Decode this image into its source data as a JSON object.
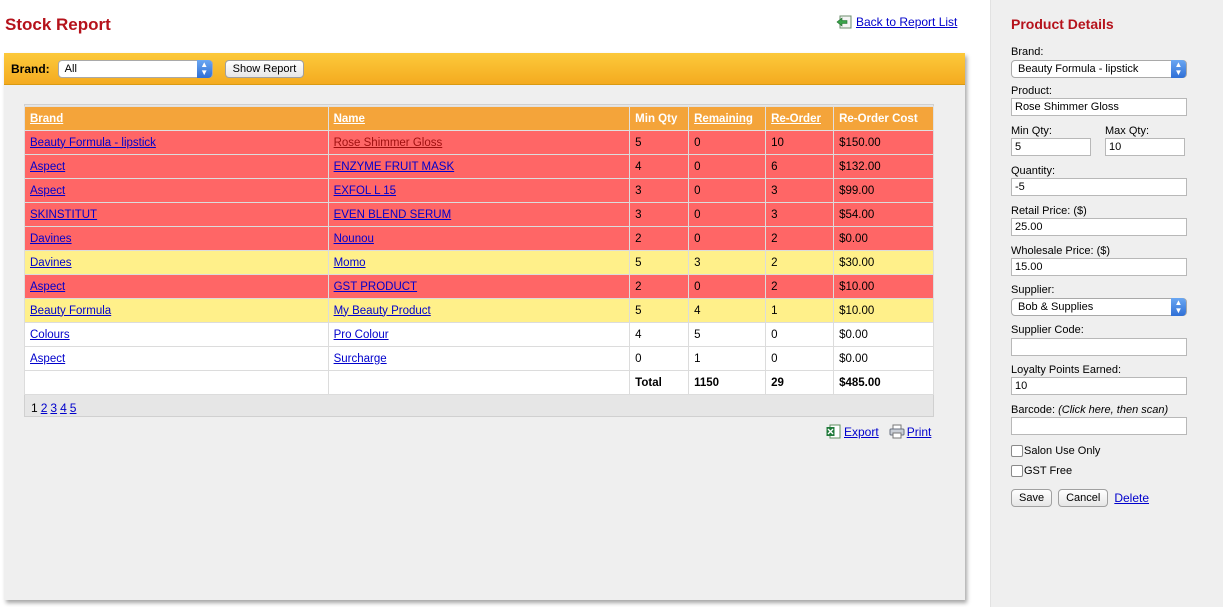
{
  "page": {
    "title": "Stock Report",
    "back_link": "Back to Report List"
  },
  "toolbar": {
    "brand_label": "Brand:",
    "brand_selected": "All",
    "show_report": "Show Report"
  },
  "table": {
    "headers": {
      "brand": "Brand",
      "name": "Name",
      "min_qty": "Min Qty",
      "remaining": "Remaining",
      "reorder": "Re-Order",
      "reorder_cost": "Re-Order Cost"
    },
    "rows": [
      {
        "brand": "Beauty Formula - lipstick",
        "name": "Rose Shimmer Gloss",
        "min_qty": "5",
        "remaining": "0",
        "reorder": "10",
        "cost": "$150.00",
        "status": "red"
      },
      {
        "brand": "Aspect",
        "name": "ENZYME FRUIT MASK",
        "min_qty": "4",
        "remaining": "0",
        "reorder": "6",
        "cost": "$132.00",
        "status": "red"
      },
      {
        "brand": "Aspect",
        "name": "EXFOL L 15",
        "min_qty": "3",
        "remaining": "0",
        "reorder": "3",
        "cost": "$99.00",
        "status": "red"
      },
      {
        "brand": "SKINSTITUT",
        "name": "EVEN BLEND SERUM",
        "min_qty": "3",
        "remaining": "0",
        "reorder": "3",
        "cost": "$54.00",
        "status": "red"
      },
      {
        "brand": "Davines",
        "name": "Nounou",
        "min_qty": "2",
        "remaining": "0",
        "reorder": "2",
        "cost": "$0.00",
        "status": "red"
      },
      {
        "brand": "Davines",
        "name": "Momo",
        "min_qty": "5",
        "remaining": "3",
        "reorder": "2",
        "cost": "$30.00",
        "status": "yellow"
      },
      {
        "brand": "Aspect",
        "name": "GST PRODUCT",
        "min_qty": "2",
        "remaining": "0",
        "reorder": "2",
        "cost": "$10.00",
        "status": "red"
      },
      {
        "brand": "Beauty Formula",
        "name": "My Beauty Product",
        "min_qty": "5",
        "remaining": "4",
        "reorder": "1",
        "cost": "$10.00",
        "status": "yellow"
      },
      {
        "brand": "Colours",
        "name": "Pro Colour",
        "min_qty": "4",
        "remaining": "5",
        "reorder": "0",
        "cost": "$0.00",
        "status": "white"
      },
      {
        "brand": "Aspect",
        "name": "Surcharge",
        "min_qty": "0",
        "remaining": "1",
        "reorder": "0",
        "cost": "$0.00",
        "status": "white"
      }
    ],
    "total": {
      "label": "Total",
      "remaining": "1150",
      "reorder": "29",
      "cost": "$485.00"
    }
  },
  "pagination": {
    "current": "1",
    "pages": [
      "2",
      "3",
      "4",
      "5"
    ]
  },
  "actions": {
    "export": "Export",
    "print": "Print"
  },
  "sidebar": {
    "title": "Product Details",
    "brand_label": "Brand:",
    "brand_value": "Beauty Formula - lipstick",
    "product_label": "Product:",
    "product_value": "Rose Shimmer Gloss",
    "min_qty_label": "Min Qty:",
    "min_qty_value": "5",
    "max_qty_label": "Max Qty:",
    "max_qty_value": "10",
    "quantity_label": "Quantity:",
    "quantity_value": "-5",
    "retail_label": "Retail Price: ($)",
    "retail_value": "25.00",
    "wholesale_label": "Wholesale Price: ($)",
    "wholesale_value": "15.00",
    "supplier_label": "Supplier:",
    "supplier_value": "Bob & Supplies",
    "supplier_code_label": "Supplier Code:",
    "supplier_code_value": "",
    "loyalty_label": "Loyalty Points Earned:",
    "loyalty_value": "10",
    "barcode_label": "Barcode:",
    "barcode_hint": "(Click here, then scan)",
    "barcode_value": "",
    "salon_use_label": "Salon Use Only",
    "gst_free_label": "GST Free",
    "save": "Save",
    "cancel": "Cancel",
    "delete": "Delete"
  },
  "colors": {
    "title_red": "#b5121b",
    "row_red": "#ff6666",
    "row_yellow": "#fff08a",
    "header_orange": "#f4a43a",
    "toolbar_yellow": "#fcc93b",
    "link_blue": "#0000cc"
  },
  "icons": {
    "back": "back-arrow-icon",
    "export": "excel-icon",
    "print": "printer-icon"
  }
}
